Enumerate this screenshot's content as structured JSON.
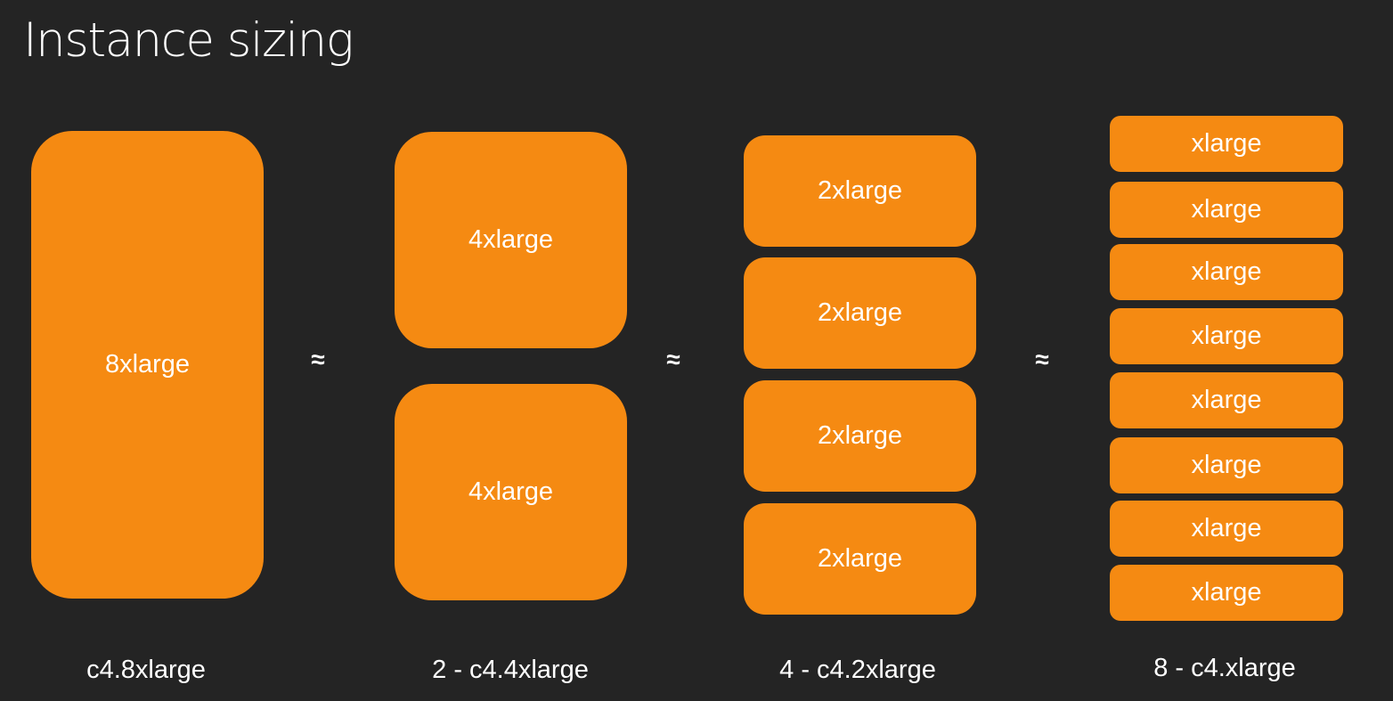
{
  "title": "Instance sizing",
  "colors": {
    "accent": "#f58a12",
    "background": "#242424",
    "text": "#ffffff"
  },
  "approx_symbol": "≈",
  "groups": [
    {
      "caption": "c4.8xlarge",
      "boxes": [
        "8xlarge"
      ]
    },
    {
      "caption": "2 - c4.4xlarge",
      "boxes": [
        "4xlarge",
        "4xlarge"
      ]
    },
    {
      "caption": "4 - c4.2xlarge",
      "boxes": [
        "2xlarge",
        "2xlarge",
        "2xlarge",
        "2xlarge"
      ]
    },
    {
      "caption": "8 - c4.xlarge",
      "boxes": [
        "xlarge",
        "xlarge",
        "xlarge",
        "xlarge",
        "xlarge",
        "xlarge",
        "xlarge",
        "xlarge"
      ]
    }
  ]
}
